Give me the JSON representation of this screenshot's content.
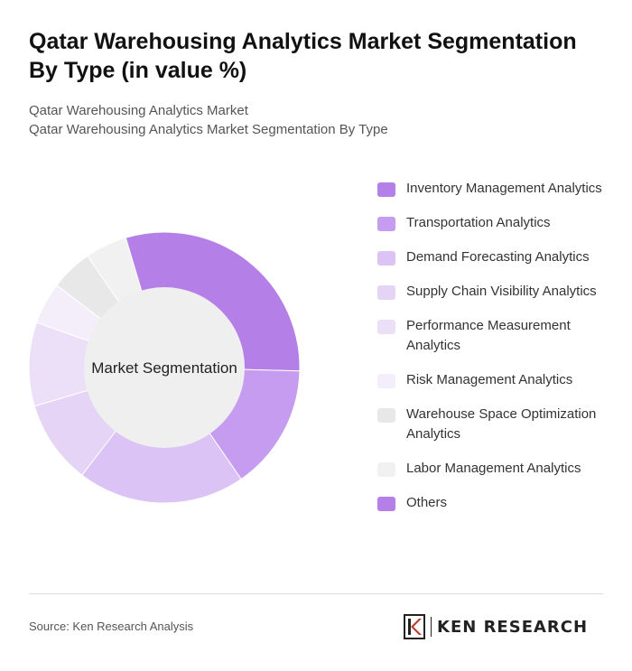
{
  "header": {
    "title": "Qatar Warehousing Analytics Market Segmentation By Type (in value %)",
    "subtitle_line1": "Qatar Warehousing Analytics Market",
    "subtitle_line2": "Qatar Warehousing Analytics Market Segmentation By Type"
  },
  "chart_data": {
    "type": "pie",
    "variant": "donut",
    "center_label": "Market Segmentation",
    "legend_position": "right",
    "categories": [
      "Inventory Management Analytics",
      "Transportation Analytics",
      "Demand Forecasting Analytics",
      "Supply Chain Visibility Analytics",
      "Performance Measurement Analytics",
      "Risk Management Analytics",
      "Warehouse Space Optimization Analytics",
      "Labor Management Analytics",
      "Others"
    ],
    "values": [
      30,
      15,
      20,
      10,
      10,
      5,
      5,
      5,
      0
    ],
    "colors": [
      "#b47fe6",
      "#c69cf0",
      "#dcc3f5",
      "#e6d4f7",
      "#ece0f9",
      "#f4eefb",
      "#e8e8e8",
      "#f1f1f1",
      "#b47fe6"
    ]
  },
  "footer": {
    "source": "Source: Ken Research Analysis",
    "brand": "KEN RESEARCH"
  }
}
